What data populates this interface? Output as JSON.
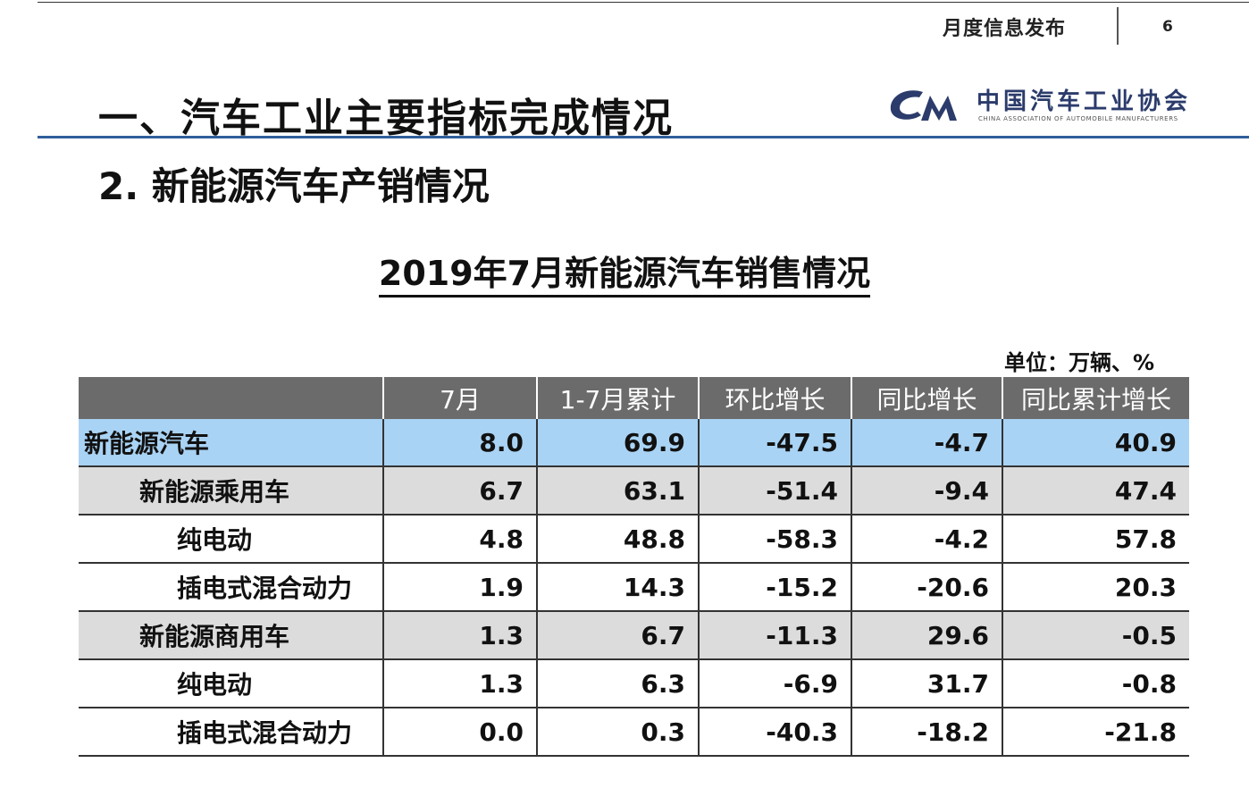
{
  "header": {
    "label": "月度信息发布",
    "page_number": "6"
  },
  "section_title": "一、汽车工业主要指标完成情况",
  "logo": {
    "cn": "中国汽车工业协会",
    "en": "CHINA ASSOCIATION OF AUTOMOBILE MANUFACTURERS"
  },
  "subsection_title": "2. 新能源汽车产销情况",
  "table": {
    "title": "2019年7月新能源汽车销售情况",
    "unit": "单位：万辆、%",
    "columns": [
      "",
      "7月",
      "1-7月累计",
      "环比增长",
      "同比增长",
      "同比累计增长"
    ],
    "rows": [
      {
        "label": "新能源汽车",
        "level": 0,
        "cells": [
          "8.0",
          "69.9",
          "-47.5",
          "-4.7",
          "40.9"
        ]
      },
      {
        "label": "新能源乘用车",
        "level": 1,
        "cells": [
          "6.7",
          "63.1",
          "-51.4",
          "-9.4",
          "47.4"
        ]
      },
      {
        "label": "纯电动",
        "level": 2,
        "cells": [
          "4.8",
          "48.8",
          "-58.3",
          "-4.2",
          "57.8"
        ]
      },
      {
        "label": "插电式混合动力",
        "level": 2,
        "cells": [
          "1.9",
          "14.3",
          "-15.2",
          "-20.6",
          "20.3"
        ]
      },
      {
        "label": "新能源商用车",
        "level": 1,
        "cells": [
          "1.3",
          "6.7",
          "-11.3",
          "29.6",
          "-0.5"
        ]
      },
      {
        "label": "纯电动",
        "level": 2,
        "cells": [
          "1.3",
          "6.3",
          "-6.9",
          "31.7",
          "-0.8"
        ]
      },
      {
        "label": "插电式混合动力",
        "level": 2,
        "cells": [
          "0.0",
          "0.3",
          "-40.3",
          "-18.2",
          "-21.8"
        ]
      }
    ]
  },
  "colors": {
    "accent_rule": "#2f5e9c",
    "header_fill": "#6b6b6b",
    "total_row_fill": "#a9d3f4",
    "subtotal_row_fill": "#dcdcdc",
    "logo_blue": "#2b3b6b"
  }
}
